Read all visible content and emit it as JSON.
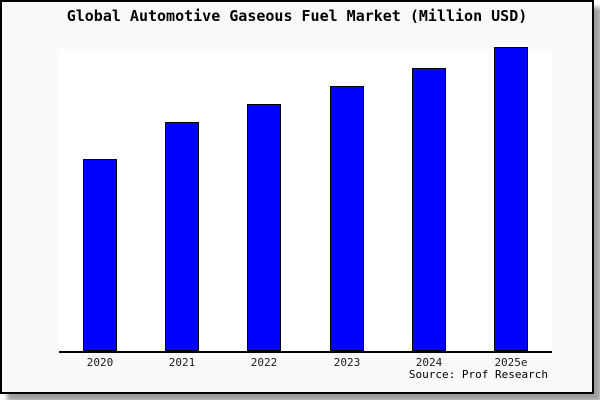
{
  "window": {
    "panel_bg": "#fafafa",
    "plot_bg": "#ffffff",
    "border_color": "#000000",
    "shadow_color": "#616161"
  },
  "chart": {
    "title": "Global Automotive Gaseous Fuel Market (Million USD)",
    "source": "Source: Prof Research"
  },
  "chart_data": {
    "type": "bar",
    "title": "Global Automotive Gaseous Fuel Market (Million USD)",
    "unit": "Million USD",
    "categories": [
      "2020",
      "2021",
      "2022",
      "2023",
      "2024",
      "2025e"
    ],
    "values_relative_to_max": [
      0.63,
      0.75,
      0.81,
      0.87,
      0.93,
      1.0
    ],
    "xlabel": "",
    "ylabel": "",
    "y_axis_tick_labels_visible": false,
    "grid": false,
    "legend": false,
    "bar_color": "#0000ff",
    "bar_border_color": "#000000",
    "source": "Source: Prof Research"
  }
}
